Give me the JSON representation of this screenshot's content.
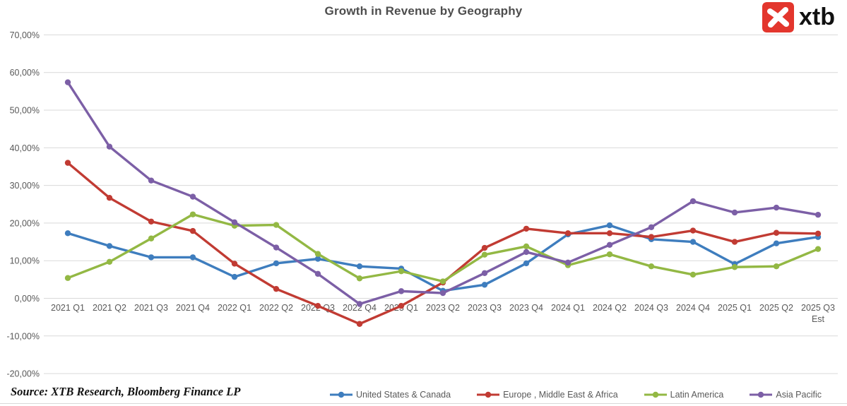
{
  "header": {
    "title": "Growth in Revenue by Geography",
    "logo": {
      "text": "xtb",
      "box_color": "#e3362d",
      "glyph": "x-cross-icon"
    }
  },
  "source_note": "Source: XTB Research, Bloomberg Finance LP",
  "chart_data": {
    "type": "line",
    "title": "Growth in Revenue by Geography",
    "categories": [
      "2021 Q1",
      "2021 Q2",
      "2021 Q3",
      "2021 Q4",
      "2022 Q1",
      "2022 Q2",
      "2022 Q3",
      "2022 Q4",
      "2023 Q1",
      "2023 Q2",
      "2023 Q3",
      "2023 Q4",
      "2024 Q1",
      "2024 Q2",
      "2024 Q3",
      "2024 Q4",
      "2025 Q1",
      "2025 Q2",
      "2025 Q3"
    ],
    "last_category_suffix": "Est",
    "series": [
      {
        "name": "United States & Canada",
        "color": "#3e7dbe",
        "values": [
          17.3,
          13.9,
          10.9,
          10.9,
          5.7,
          9.3,
          10.5,
          8.5,
          7.9,
          2.0,
          3.6,
          9.3,
          17.0,
          19.4,
          15.7,
          15.0,
          9.1,
          14.6,
          16.3
        ]
      },
      {
        "name": "Europe , Middle East & Africa",
        "color": "#c13b33",
        "values": [
          36.0,
          26.7,
          20.4,
          17.9,
          9.2,
          2.5,
          -2.0,
          -6.8,
          -2.0,
          4.2,
          13.4,
          18.5,
          17.3,
          17.3,
          16.3,
          18.0,
          15.0,
          17.4,
          17.2
        ]
      },
      {
        "name": "Latin America",
        "color": "#93b844",
        "values": [
          5.4,
          9.7,
          15.9,
          22.3,
          19.3,
          19.5,
          11.8,
          5.3,
          7.2,
          4.5,
          11.6,
          13.8,
          8.8,
          11.7,
          8.5,
          6.3,
          8.3,
          8.5,
          13.1
        ]
      },
      {
        "name": "Asia Pacific",
        "color": "#7c5fa6",
        "values": [
          57.4,
          40.3,
          31.3,
          27.0,
          20.2,
          13.5,
          6.5,
          -1.5,
          1.9,
          1.4,
          6.7,
          12.3,
          9.5,
          14.2,
          18.9,
          25.8,
          22.8,
          24.1,
          22.2
        ]
      }
    ],
    "ylim": [
      -20,
      70
    ],
    "ytick_step": 10,
    "ytick_labels": [
      "70,00%",
      "60,00%",
      "50,00%",
      "40,00%",
      "30,00%",
      "20,00%",
      "10,00%",
      "0,00%",
      "-10,00%",
      "-20,00%"
    ],
    "decimal_separator": ",",
    "value_suffix": "%",
    "grid": true,
    "grid_color": "#d9d9d9",
    "legend_position": "bottom"
  }
}
